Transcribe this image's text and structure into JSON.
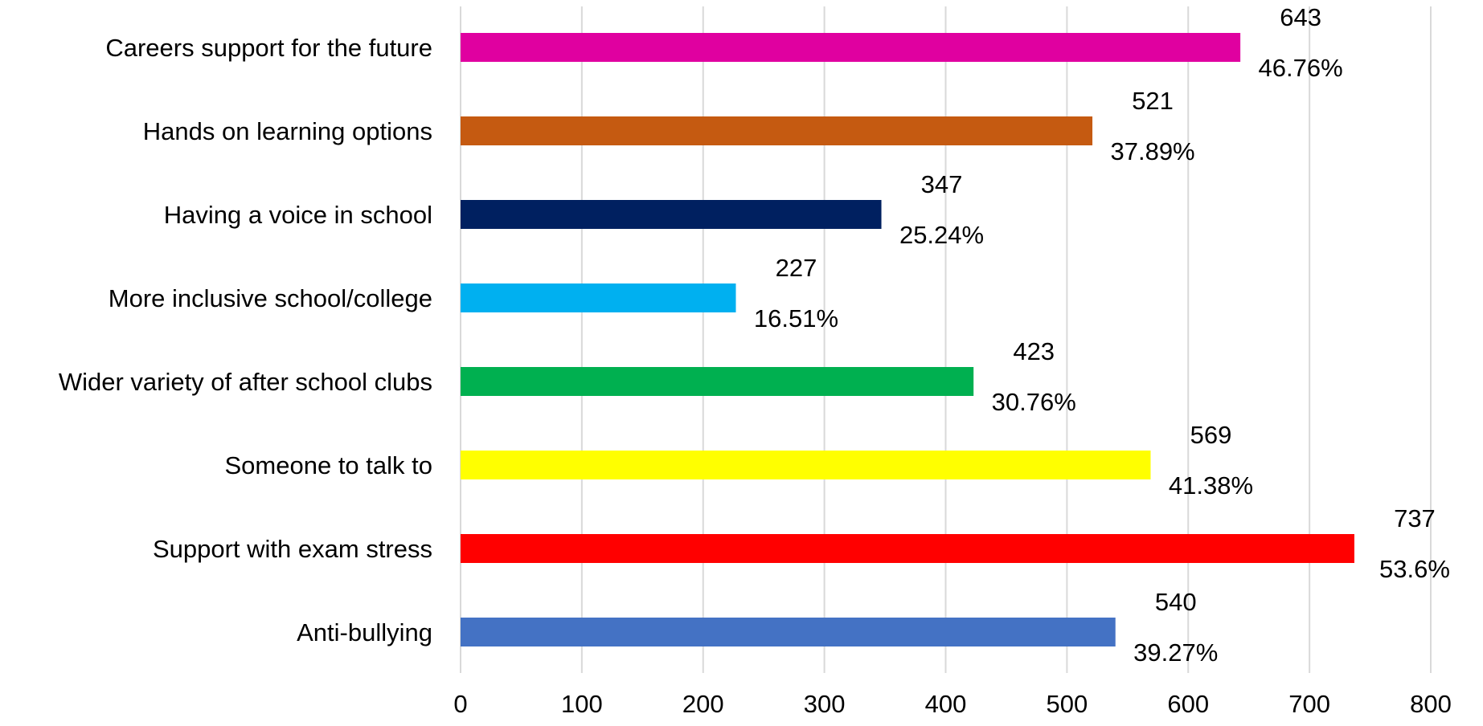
{
  "chart_data": {
    "type": "bar",
    "orientation": "horizontal",
    "title": "",
    "xlabel": "",
    "ylabel": "",
    "xlim": [
      0,
      800
    ],
    "x_ticks": [
      0,
      100,
      200,
      300,
      400,
      500,
      600,
      700,
      800
    ],
    "grid": "vertical",
    "legend": "none",
    "categories": [
      "Careers support for the future",
      "Hands on learning options",
      "Having a voice in school",
      "More inclusive school/college",
      "Wider variety of after school clubs",
      "Someone to talk to",
      "Support with exam stress",
      "Anti-bullying"
    ],
    "values": [
      643,
      521,
      347,
      227,
      423,
      569,
      737,
      540
    ],
    "percent_labels": [
      "46.76%",
      "37.89%",
      "25.24%",
      "16.51%",
      "30.76%",
      "41.38%",
      "53.6%",
      "39.27%"
    ],
    "colors": [
      "#E000A0",
      "#C55A11",
      "#002060",
      "#00B0F0",
      "#00B050",
      "#FFFF00",
      "#FF0000",
      "#4472C4"
    ],
    "gridline_color": "#D9D9D9"
  }
}
